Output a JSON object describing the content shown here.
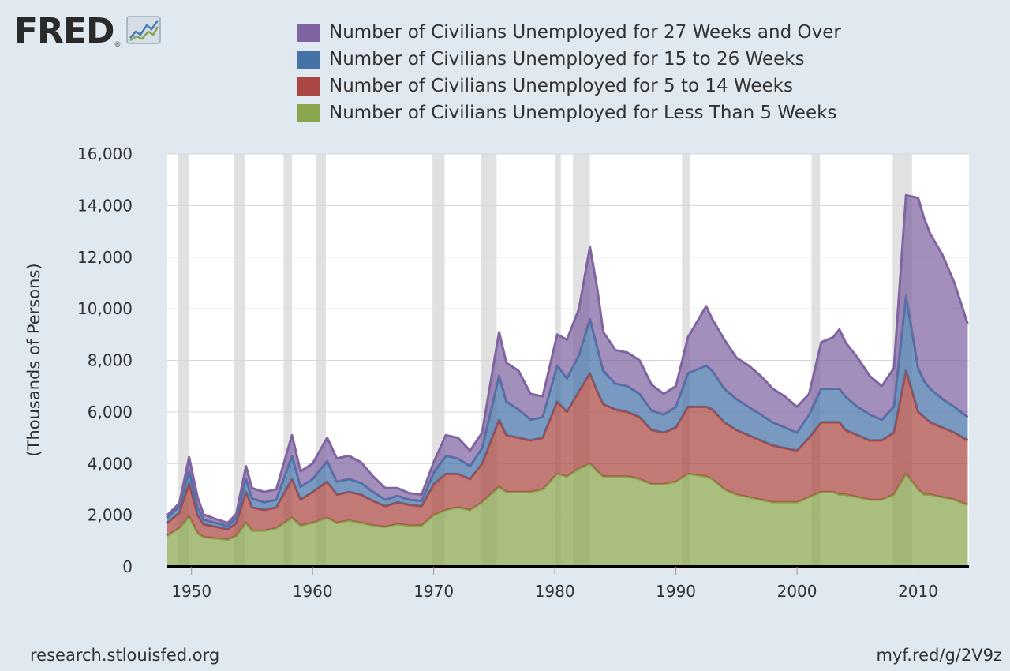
{
  "logo": {
    "text": "FRED",
    "registered": "®",
    "icon": "line-graph-icon"
  },
  "footer": {
    "source": "research.stlouisfed.org",
    "short_link": "myf.red/g/2V9z"
  },
  "recessions": [
    [
      1948.9,
      1949.8
    ],
    [
      1953.5,
      1954.4
    ],
    [
      1957.6,
      1958.3
    ],
    [
      1960.3,
      1961.1
    ],
    [
      1969.9,
      1970.9
    ],
    [
      1973.9,
      1975.2
    ],
    [
      1980.0,
      1980.5
    ],
    [
      1981.5,
      1982.9
    ],
    [
      1990.5,
      1991.2
    ],
    [
      2001.2,
      2001.9
    ],
    [
      2007.9,
      2009.5
    ]
  ],
  "chart_data": {
    "type": "area",
    "stacked": true,
    "xlabel": "",
    "ylabel": "(Thousands of Persons)",
    "xlim": [
      1948,
      2014.2
    ],
    "ylim": [
      0,
      16000
    ],
    "yticks": [
      0,
      2000,
      4000,
      6000,
      8000,
      10000,
      12000,
      14000,
      16000
    ],
    "ytick_labels": [
      "0",
      "2,000",
      "4,000",
      "6,000",
      "8,000",
      "10,000",
      "12,000",
      "14,000",
      "16,000"
    ],
    "xticks": [
      1950,
      1960,
      1970,
      1980,
      1990,
      2000,
      2010
    ],
    "xtick_labels": [
      "1950",
      "1960",
      "1970",
      "1980",
      "1990",
      "2000",
      "2010"
    ],
    "grid": "horizontal",
    "legend_position": "top",
    "x": [
      1948.0,
      1949.0,
      1949.8,
      1950.5,
      1951.0,
      1952.0,
      1953.0,
      1953.7,
      1954.5,
      1955.0,
      1956.0,
      1957.0,
      1958.3,
      1959.0,
      1960.0,
      1961.2,
      1962.0,
      1963.0,
      1964.0,
      1965.0,
      1966.0,
      1967.0,
      1968.0,
      1969.0,
      1970.0,
      1971.0,
      1972.0,
      1973.0,
      1974.0,
      1975.4,
      1976.0,
      1977.0,
      1978.0,
      1979.0,
      1980.2,
      1981.0,
      1982.0,
      1982.9,
      1983.5,
      1984.0,
      1985.0,
      1986.0,
      1987.0,
      1988.0,
      1989.0,
      1990.0,
      1991.0,
      1992.5,
      1993.0,
      1994.0,
      1995.0,
      1996.0,
      1997.0,
      1998.0,
      1999.0,
      2000.0,
      2001.0,
      2002.0,
      2003.0,
      2003.5,
      2004.0,
      2005.0,
      2006.0,
      2007.0,
      2008.0,
      2009.0,
      2010.0,
      2010.5,
      2011.0,
      2012.0,
      2013.0,
      2014.1
    ],
    "series": [
      {
        "name": "Number of Civilians Unemployed for Less Than 5 Weeks",
        "color": "#89a54e",
        "values": [
          1200,
          1500,
          1950,
          1300,
          1150,
          1100,
          1050,
          1200,
          1700,
          1400,
          1400,
          1500,
          1900,
          1600,
          1700,
          1900,
          1700,
          1800,
          1700,
          1600,
          1550,
          1650,
          1600,
          1600,
          2000,
          2200,
          2300,
          2200,
          2500,
          3100,
          2900,
          2900,
          2900,
          3000,
          3600,
          3500,
          3800,
          4000,
          3700,
          3500,
          3500,
          3500,
          3400,
          3200,
          3200,
          3300,
          3600,
          3500,
          3400,
          3000,
          2800,
          2700,
          2600,
          2500,
          2500,
          2500,
          2700,
          2900,
          2900,
          2800,
          2800,
          2700,
          2600,
          2600,
          2800,
          3600,
          3000,
          2800,
          2800,
          2700,
          2600,
          2400
        ]
      },
      {
        "name": "Number of Civilians Unemployed for 5 to 14 Weeks",
        "color": "#aa4643",
        "values": [
          500,
          600,
          1300,
          700,
          500,
          450,
          400,
          500,
          1200,
          900,
          800,
          800,
          1500,
          1000,
          1200,
          1400,
          1100,
          1100,
          1100,
          950,
          800,
          850,
          800,
          750,
          1200,
          1400,
          1300,
          1200,
          1500,
          2600,
          2200,
          2100,
          2000,
          2000,
          2800,
          2500,
          3000,
          3500,
          3100,
          2800,
          2600,
          2500,
          2400,
          2100,
          2000,
          2100,
          2600,
          2700,
          2700,
          2600,
          2500,
          2400,
          2300,
          2200,
          2100,
          2000,
          2300,
          2700,
          2700,
          2800,
          2500,
          2400,
          2300,
          2300,
          2400,
          4000,
          3000,
          3000,
          2800,
          2700,
          2600,
          2500
        ]
      },
      {
        "name": "Number of Civilians Unemployed for 15 to 26 Weeks",
        "color": "#4572a7",
        "values": [
          200,
          250,
          500,
          300,
          180,
          150,
          130,
          200,
          500,
          350,
          300,
          300,
          900,
          500,
          500,
          800,
          500,
          500,
          450,
          350,
          250,
          250,
          200,
          200,
          450,
          700,
          600,
          500,
          600,
          1700,
          1300,
          1100,
          800,
          800,
          1400,
          1300,
          1400,
          2100,
          1700,
          1300,
          1000,
          1000,
          900,
          750,
          700,
          800,
          1300,
          1600,
          1500,
          1300,
          1200,
          1100,
          1000,
          900,
          800,
          700,
          900,
          1300,
          1300,
          1300,
          1300,
          1100,
          1000,
          800,
          1000,
          2900,
          1700,
          1400,
          1300,
          1100,
          1000,
          900
        ]
      },
      {
        "name": "Number of Civilians Unemployed for 27 Weeks and Over",
        "color": "#8064a2",
        "values": [
          100,
          120,
          500,
          400,
          200,
          150,
          120,
          150,
          500,
          400,
          400,
          400,
          800,
          600,
          600,
          900,
          900,
          900,
          800,
          600,
          450,
          300,
          250,
          250,
          400,
          800,
          800,
          600,
          600,
          1700,
          1500,
          1500,
          1000,
          800,
          1200,
          1500,
          1800,
          2800,
          2300,
          1500,
          1300,
          1300,
          1300,
          1000,
          800,
          800,
          1400,
          2300,
          2000,
          1900,
          1600,
          1600,
          1500,
          1300,
          1200,
          1000,
          800,
          1800,
          2000,
          2300,
          2100,
          1900,
          1500,
          1300,
          1500,
          3900,
          6600,
          6300,
          6000,
          5600,
          4800,
          3600
        ]
      }
    ]
  }
}
